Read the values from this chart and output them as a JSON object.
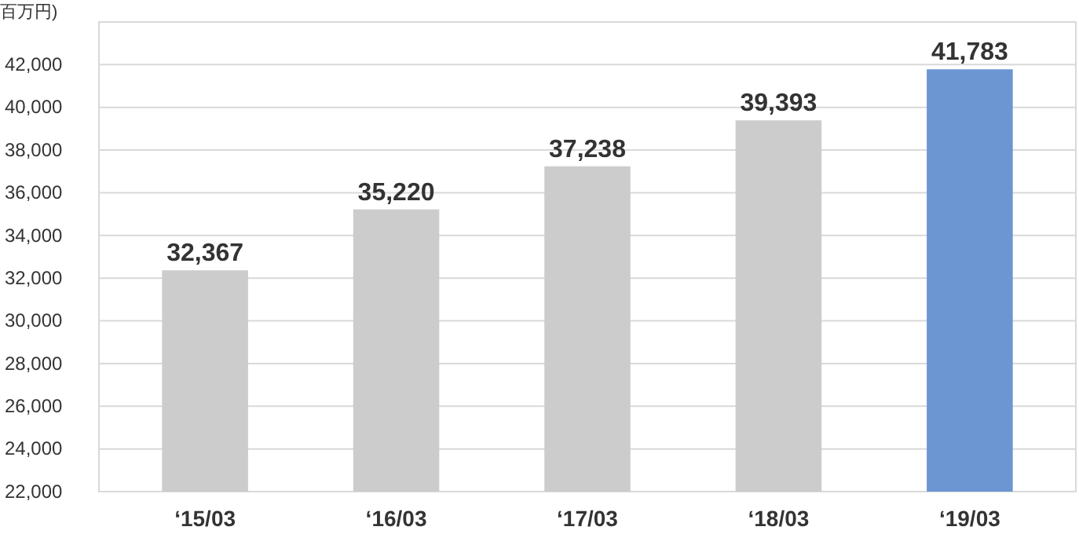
{
  "chart_data": {
    "type": "bar",
    "ylabel": "百万円)",
    "categories": [
      "‘15/03",
      "‘16/03",
      "‘17/03",
      "‘18/03",
      "‘19/03"
    ],
    "values": [
      32367,
      35220,
      37238,
      39393,
      41783
    ],
    "value_labels": [
      "32,367",
      "35,220",
      "37,238",
      "39,393",
      "41,783"
    ],
    "colors": [
      "#cccccc",
      "#cccccc",
      "#cccccc",
      "#cccccc",
      "#6b96d2"
    ],
    "ylim": [
      22000,
      44000
    ],
    "yticks": [
      {
        "value": 22000,
        "label": "22,000"
      },
      {
        "value": 24000,
        "label": "24,000"
      },
      {
        "value": 26000,
        "label": "26,000"
      },
      {
        "value": 28000,
        "label": "28,000"
      },
      {
        "value": 30000,
        "label": "30,000"
      },
      {
        "value": 32000,
        "label": "32,000"
      },
      {
        "value": 34000,
        "label": "34,000"
      },
      {
        "value": 36000,
        "label": "36,000"
      },
      {
        "value": 38000,
        "label": "38,000"
      },
      {
        "value": 40000,
        "label": "40,000"
      },
      {
        "value": 42000,
        "label": "42,000"
      }
    ],
    "grid": "y"
  }
}
